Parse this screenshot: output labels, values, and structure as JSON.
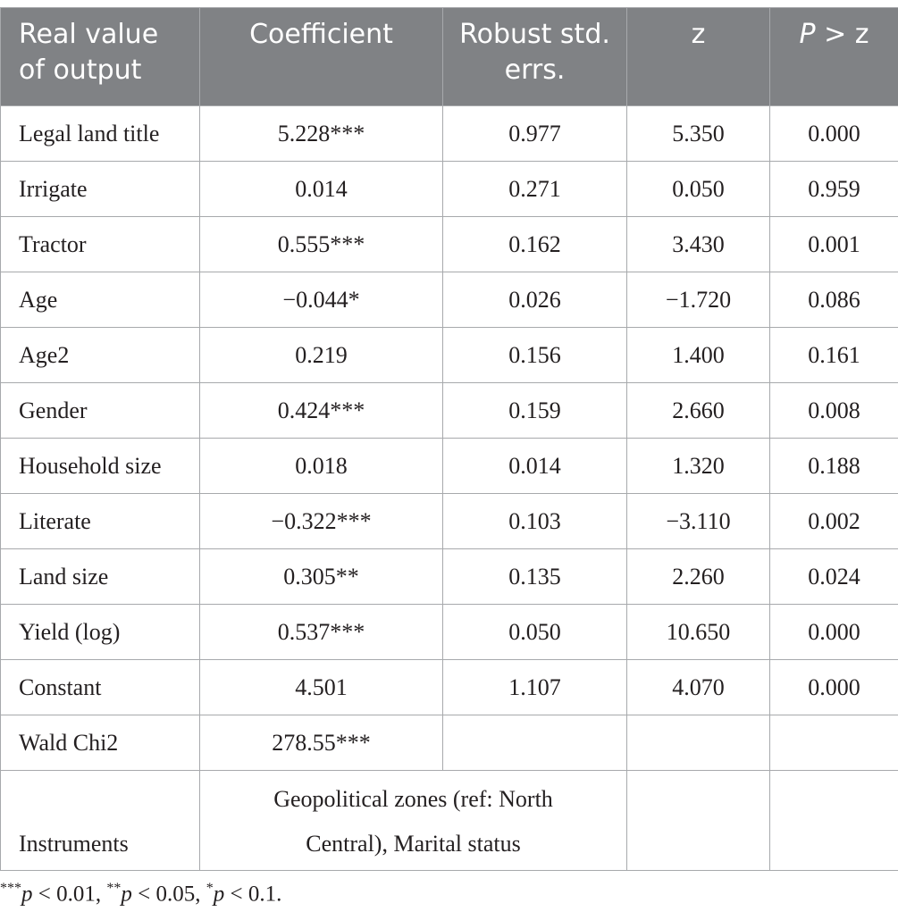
{
  "table": {
    "headers": {
      "col1": "Real value of output",
      "col2": "Coefficient",
      "col3": "Robust std. errs.",
      "col4": "z",
      "col5_p": "P",
      "col5_rest": " > z"
    },
    "rows": [
      {
        "label": "Legal land title",
        "coef": "5.228***",
        "se": "0.977",
        "z": "5.350",
        "p": "0.000"
      },
      {
        "label": "Irrigate",
        "coef": "0.014",
        "se": "0.271",
        "z": "0.050",
        "p": "0.959"
      },
      {
        "label": "Tractor",
        "coef": "0.555***",
        "se": "0.162",
        "z": "3.430",
        "p": "0.001"
      },
      {
        "label": "Age",
        "coef": "−0.044*",
        "se": "0.026",
        "z": "−1.720",
        "p": "0.086"
      },
      {
        "label": "Age2",
        "coef": "0.219",
        "se": "0.156",
        "z": "1.400",
        "p": "0.161"
      },
      {
        "label": "Gender",
        "coef": "0.424***",
        "se": "0.159",
        "z": "2.660",
        "p": "0.008"
      },
      {
        "label": "Household size",
        "coef": "0.018",
        "se": "0.014",
        "z": "1.320",
        "p": "0.188"
      },
      {
        "label": "Literate",
        "coef": "−0.322***",
        "se": "0.103",
        "z": "−3.110",
        "p": "0.002"
      },
      {
        "label": "Land size",
        "coef": "0.305**",
        "se": "0.135",
        "z": "2.260",
        "p": "0.024"
      },
      {
        "label": "Yield (log)",
        "coef": "0.537***",
        "se": "0.050",
        "z": "10.650",
        "p": "0.000"
      },
      {
        "label": "Constant",
        "coef": "4.501",
        "se": "1.107",
        "z": "4.070",
        "p": "0.000"
      }
    ],
    "wald": {
      "label": "Wald Chi2",
      "value": "278.55***"
    },
    "instruments": {
      "label": "Instruments",
      "value_line1": "Geopolitical zones (ref: North",
      "value_line2": "Central), Marital status"
    }
  },
  "footnote": {
    "s1": "***",
    "p1": "p",
    "t1": " < 0.01, ",
    "s2": "**",
    "p2": "p",
    "t2": " < 0.05, ",
    "s3": "*",
    "p3": "p",
    "t3": " < 0.1."
  },
  "colors": {
    "header_bg": "#808285",
    "border": "#a7a9ac",
    "text": "#231f20"
  }
}
